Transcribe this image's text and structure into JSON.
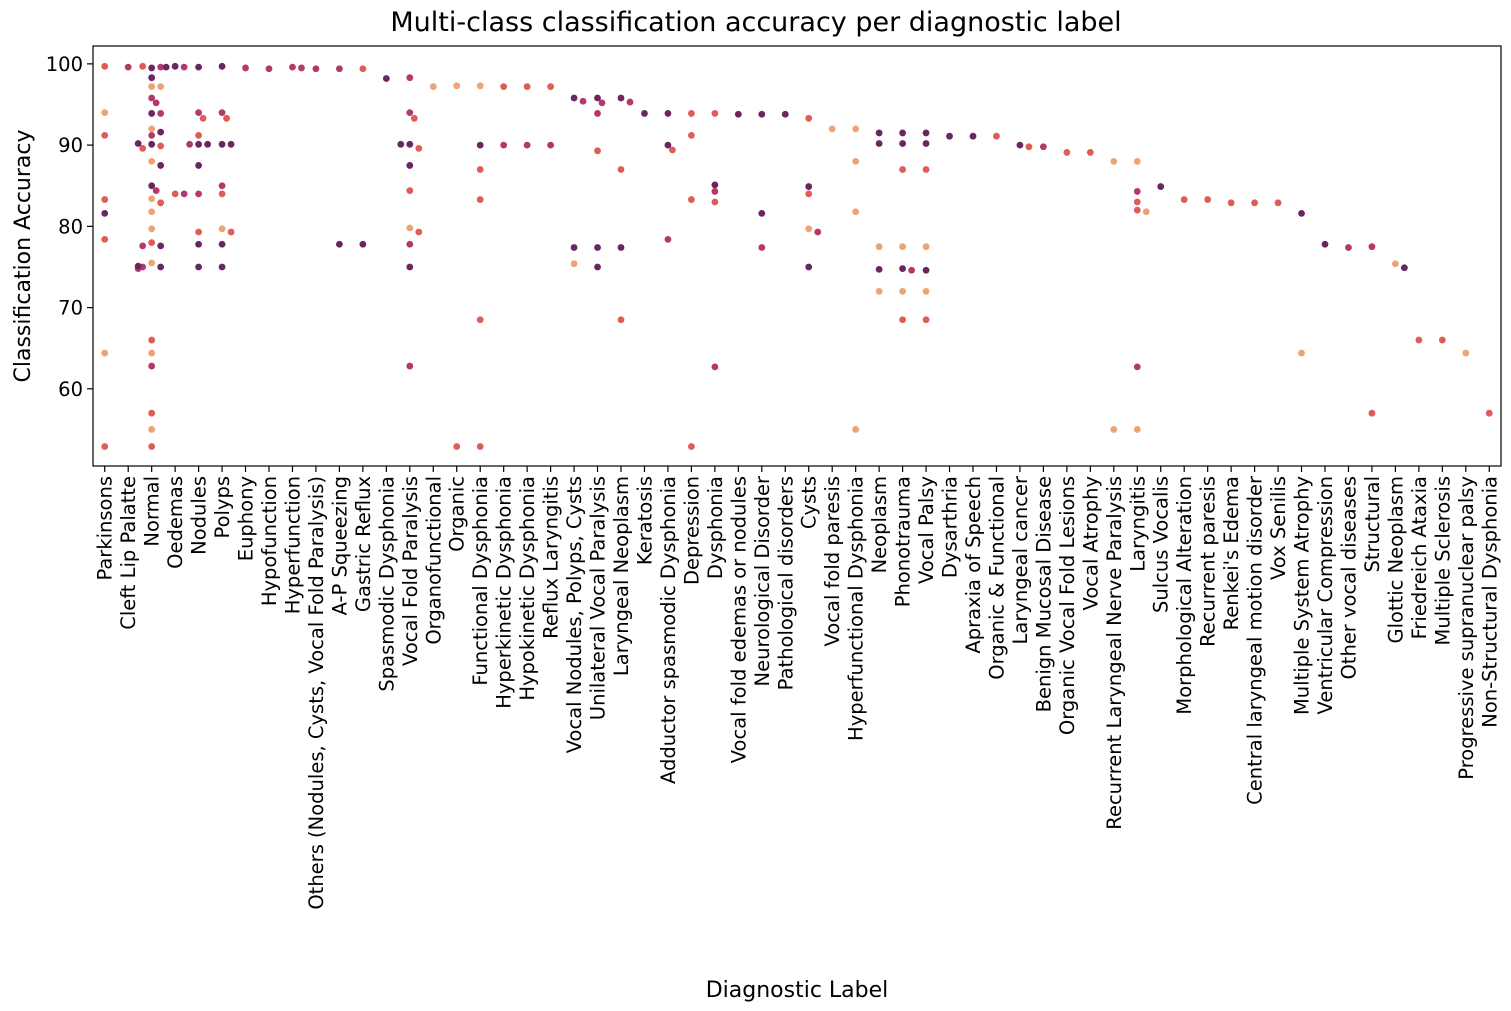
{
  "chart_data": {
    "type": "scatter",
    "title": "Multi-class classification accuracy per diagnostic label",
    "xlabel": "Diagnostic Label",
    "ylabel": "Classification Accuracy",
    "ylim": [
      50.5,
      102.2
    ],
    "yticks": [
      60,
      70,
      80,
      90,
      100
    ],
    "grid": false,
    "palette": [
      "#eda475",
      "#e05c56",
      "#b5386a",
      "#6a2660"
    ],
    "categories": [
      "Parkinsons",
      "Cleft Lip Palatte",
      "Normal",
      "Oedemas",
      "Nodules",
      "Polyps",
      "Euphony",
      "Hypofunction",
      "Hyperfunction",
      "Others (Nodules, Cysts, Vocal Fold Paralysis)",
      "A-P Squeezing",
      "Gastric Reflux",
      "Spasmodic Dysphonia",
      "Vocal Fold Paralysis",
      "Organofunctional",
      "Organic",
      "Functional Dysphonia",
      "Hyperkinetic Dysphonia",
      "Hypokinetic Dysphonia",
      "Reflux Laryngitis",
      "Vocal Nodules, Polyps, Cysts",
      "Unilateral Vocal Paralysis",
      "Laryngeal Neoplasm",
      "Keratosis",
      "Adductor spasmodic Dysphonia",
      "Depression",
      "Dysphonia",
      "Vocal fold edemas or nodules",
      "Neurological Disorder",
      "Pathological disorders",
      "Cysts",
      "Vocal fold paresis",
      "Hyperfunctional Dysphonia",
      "Neoplasm",
      "Phonotrauma",
      "Vocal Palsy",
      "Dysarthria",
      "Apraxia of Speech",
      "Organic & Functional",
      "Laryngeal cancer",
      "Benign Mucosal Disease",
      "Organic Vocal Fold Lesions",
      "Vocal Atrophy",
      "Recurrent Laryngeal Nerve Paralysis",
      "Laryngitis",
      "Sulcus Vocalis",
      "Morphological Alteration",
      "Recurrent paresis",
      "Renkei's Edema",
      "Central laryngeal motion disorder",
      "Vox Senilis",
      "Multiple System Atrophy",
      "Ventricular Compression",
      "Other vocal diseases",
      "Structural",
      "Glottic Neoplasm",
      "Friedreich Ataxia",
      "Multiple Sclerosis",
      "Progressive supranuclear palsy",
      "Non-Structural Dysphonia"
    ],
    "points": [
      [
        0,
        99.7,
        1
      ],
      [
        0,
        94.0,
        0
      ],
      [
        0,
        91.2,
        1
      ],
      [
        0,
        83.3,
        1
      ],
      [
        0,
        81.6,
        3
      ],
      [
        0,
        78.4,
        1
      ],
      [
        0,
        64.4,
        0
      ],
      [
        0,
        52.9,
        1
      ],
      [
        1,
        99.6,
        2
      ],
      [
        2,
        99.5,
        3
      ],
      [
        2,
        99.6,
        2
      ],
      [
        2,
        99.7,
        1
      ],
      [
        2,
        98.3,
        3
      ],
      [
        2,
        97.2,
        0
      ],
      [
        2,
        97.2,
        0
      ],
      [
        2,
        95.8,
        2
      ],
      [
        2,
        95.2,
        2
      ],
      [
        2,
        93.9,
        3
      ],
      [
        2,
        93.9,
        2
      ],
      [
        2,
        92.0,
        0
      ],
      [
        2,
        91.6,
        3
      ],
      [
        2,
        91.2,
        2
      ],
      [
        2,
        90.1,
        3
      ],
      [
        2,
        89.9,
        1
      ],
      [
        2,
        89.6,
        1
      ],
      [
        2,
        90.2,
        3
      ],
      [
        2,
        88.0,
        0
      ],
      [
        2,
        87.5,
        3
      ],
      [
        2,
        85.0,
        3
      ],
      [
        2,
        84.4,
        2
      ],
      [
        2,
        83.4,
        0
      ],
      [
        2,
        82.9,
        1
      ],
      [
        2,
        81.8,
        0
      ],
      [
        2,
        79.7,
        0
      ],
      [
        2,
        78.0,
        1
      ],
      [
        2,
        77.6,
        3
      ],
      [
        2,
        77.6,
        2
      ],
      [
        2,
        75.5,
        0
      ],
      [
        2,
        75.0,
        3
      ],
      [
        2,
        75.0,
        2
      ],
      [
        2,
        74.8,
        2
      ],
      [
        2,
        75.1,
        3
      ],
      [
        2,
        66.0,
        1
      ],
      [
        2,
        64.4,
        0
      ],
      [
        2,
        62.8,
        2
      ],
      [
        2,
        57.0,
        1
      ],
      [
        2,
        55.0,
        0
      ],
      [
        2,
        52.9,
        1
      ],
      [
        3,
        99.7,
        3
      ],
      [
        3,
        99.6,
        2
      ],
      [
        3,
        99.6,
        3
      ],
      [
        3,
        84.0,
        1
      ],
      [
        3,
        84.0,
        2
      ],
      [
        4,
        99.6,
        3
      ],
      [
        4,
        94.0,
        2
      ],
      [
        4,
        93.3,
        1
      ],
      [
        4,
        91.2,
        1
      ],
      [
        4,
        90.1,
        3
      ],
      [
        4,
        90.1,
        3
      ],
      [
        4,
        90.1,
        2
      ],
      [
        4,
        87.5,
        3
      ],
      [
        4,
        84.0,
        2
      ],
      [
        4,
        79.3,
        1
      ],
      [
        4,
        77.8,
        3
      ],
      [
        4,
        75.0,
        3
      ],
      [
        5,
        99.7,
        3
      ],
      [
        5,
        94.0,
        2
      ],
      [
        5,
        93.3,
        1
      ],
      [
        5,
        90.1,
        3
      ],
      [
        5,
        90.1,
        3
      ],
      [
        5,
        85.0,
        2
      ],
      [
        5,
        84.0,
        1
      ],
      [
        5,
        79.7,
        0
      ],
      [
        5,
        79.3,
        1
      ],
      [
        5,
        77.8,
        3
      ],
      [
        5,
        75.0,
        3
      ],
      [
        6,
        99.5,
        2
      ],
      [
        7,
        99.4,
        2
      ],
      [
        8,
        99.6,
        2
      ],
      [
        8,
        99.5,
        2
      ],
      [
        9,
        99.4,
        2
      ],
      [
        10,
        99.4,
        2
      ],
      [
        10,
        77.8,
        3
      ],
      [
        11,
        99.4,
        1
      ],
      [
        11,
        77.8,
        3
      ],
      [
        12,
        98.2,
        3
      ],
      [
        13,
        98.3,
        2
      ],
      [
        13,
        94.0,
        2
      ],
      [
        13,
        93.3,
        1
      ],
      [
        13,
        90.1,
        3
      ],
      [
        13,
        89.6,
        1
      ],
      [
        13,
        90.1,
        3
      ],
      [
        13,
        87.5,
        3
      ],
      [
        13,
        84.4,
        1
      ],
      [
        13,
        79.8,
        0
      ],
      [
        13,
        79.3,
        1
      ],
      [
        13,
        77.8,
        2
      ],
      [
        13,
        75.0,
        3
      ],
      [
        13,
        62.8,
        2
      ],
      [
        14,
        97.2,
        0
      ],
      [
        15,
        97.3,
        0
      ],
      [
        15,
        52.9,
        1
      ],
      [
        16,
        97.3,
        0
      ],
      [
        16,
        90.0,
        3
      ],
      [
        16,
        87.0,
        1
      ],
      [
        16,
        83.3,
        1
      ],
      [
        16,
        68.5,
        1
      ],
      [
        16,
        52.9,
        1
      ],
      [
        17,
        97.2,
        1
      ],
      [
        17,
        90.0,
        2
      ],
      [
        18,
        97.2,
        1
      ],
      [
        18,
        90.0,
        2
      ],
      [
        19,
        97.2,
        1
      ],
      [
        19,
        90.0,
        2
      ],
      [
        20,
        95.8,
        3
      ],
      [
        20,
        95.4,
        2
      ],
      [
        20,
        77.4,
        3
      ],
      [
        20,
        75.4,
        0
      ],
      [
        21,
        95.8,
        3
      ],
      [
        21,
        95.2,
        2
      ],
      [
        21,
        93.9,
        2
      ],
      [
        21,
        89.3,
        1
      ],
      [
        21,
        77.4,
        3
      ],
      [
        21,
        75.0,
        3
      ],
      [
        22,
        95.8,
        3
      ],
      [
        22,
        95.3,
        2
      ],
      [
        22,
        87.0,
        1
      ],
      [
        22,
        77.4,
        3
      ],
      [
        22,
        68.5,
        1
      ],
      [
        23,
        93.9,
        3
      ],
      [
        24,
        93.9,
        3
      ],
      [
        24,
        90.0,
        3
      ],
      [
        24,
        89.4,
        1
      ],
      [
        24,
        78.4,
        2
      ],
      [
        25,
        93.9,
        1
      ],
      [
        25,
        91.2,
        1
      ],
      [
        25,
        83.3,
        1
      ],
      [
        25,
        52.9,
        1
      ],
      [
        26,
        93.9,
        1
      ],
      [
        26,
        85.1,
        3
      ],
      [
        26,
        84.3,
        2
      ],
      [
        26,
        83.0,
        1
      ],
      [
        26,
        62.7,
        2
      ],
      [
        27,
        93.8,
        3
      ],
      [
        28,
        93.8,
        3
      ],
      [
        28,
        81.6,
        3
      ],
      [
        28,
        77.4,
        2
      ],
      [
        29,
        93.8,
        3
      ],
      [
        30,
        93.3,
        1
      ],
      [
        30,
        84.9,
        3
      ],
      [
        30,
        84.0,
        1
      ],
      [
        30,
        79.7,
        0
      ],
      [
        30,
        79.3,
        2
      ],
      [
        30,
        75.0,
        3
      ],
      [
        31,
        92.0,
        0
      ],
      [
        32,
        92.0,
        0
      ],
      [
        32,
        88.0,
        0
      ],
      [
        32,
        81.8,
        0
      ],
      [
        32,
        55.0,
        0
      ],
      [
        33,
        91.5,
        3
      ],
      [
        33,
        90.2,
        3
      ],
      [
        33,
        77.5,
        0
      ],
      [
        33,
        74.7,
        3
      ],
      [
        33,
        72.0,
        0
      ],
      [
        34,
        91.5,
        3
      ],
      [
        34,
        90.2,
        3
      ],
      [
        34,
        87.0,
        1
      ],
      [
        34,
        77.5,
        0
      ],
      [
        34,
        74.8,
        3
      ],
      [
        34,
        74.6,
        2
      ],
      [
        34,
        72.0,
        0
      ],
      [
        34,
        68.5,
        1
      ],
      [
        35,
        91.5,
        3
      ],
      [
        35,
        90.2,
        3
      ],
      [
        35,
        87.0,
        1
      ],
      [
        35,
        77.5,
        0
      ],
      [
        35,
        74.6,
        3
      ],
      [
        35,
        72.0,
        0
      ],
      [
        35,
        68.5,
        1
      ],
      [
        36,
        91.1,
        3
      ],
      [
        37,
        91.1,
        3
      ],
      [
        38,
        91.1,
        1
      ],
      [
        39,
        90.0,
        3
      ],
      [
        39,
        89.8,
        1
      ],
      [
        40,
        89.8,
        2
      ],
      [
        41,
        89.1,
        1
      ],
      [
        42,
        89.1,
        1
      ],
      [
        43,
        88.0,
        0
      ],
      [
        43,
        55.0,
        0
      ],
      [
        44,
        88.0,
        0
      ],
      [
        44,
        84.3,
        2
      ],
      [
        44,
        83.0,
        1
      ],
      [
        44,
        82.0,
        1
      ],
      [
        44,
        81.8,
        0
      ],
      [
        44,
        62.7,
        2
      ],
      [
        44,
        55.0,
        0
      ],
      [
        45,
        84.9,
        3
      ],
      [
        46,
        83.3,
        1
      ],
      [
        47,
        83.3,
        1
      ],
      [
        48,
        82.9,
        1
      ],
      [
        49,
        82.9,
        1
      ],
      [
        50,
        82.9,
        1
      ],
      [
        51,
        81.6,
        3
      ],
      [
        51,
        64.4,
        0
      ],
      [
        52,
        77.8,
        3
      ],
      [
        53,
        77.4,
        2
      ],
      [
        54,
        77.5,
        2
      ],
      [
        54,
        57.0,
        1
      ],
      [
        55,
        75.4,
        0
      ],
      [
        55,
        74.9,
        3
      ],
      [
        56,
        66.0,
        1
      ],
      [
        57,
        66.0,
        1
      ],
      [
        58,
        64.4,
        0
      ],
      [
        59,
        57.0,
        1
      ]
    ]
  }
}
